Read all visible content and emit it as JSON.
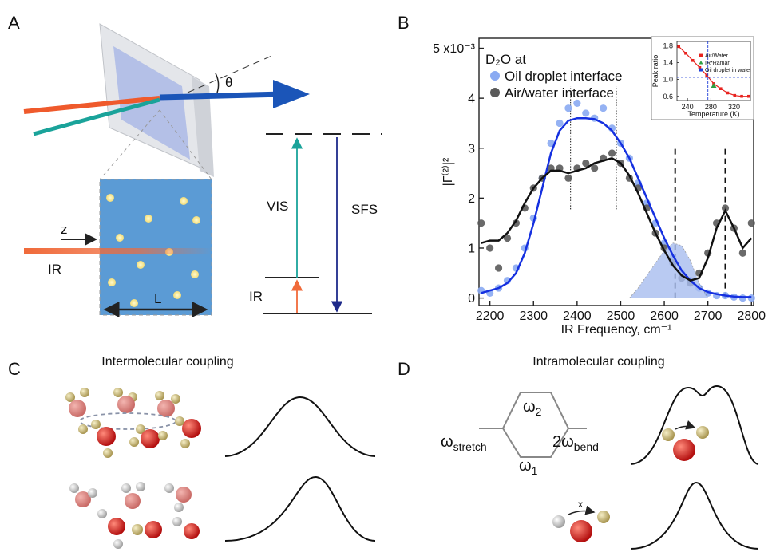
{
  "panel_labels": [
    "A",
    "B",
    "C",
    "D"
  ],
  "panel_a": {
    "angle": "θ",
    "vis": "VIS",
    "sfs": "SFS",
    "ir_level": "IR",
    "ir_beam": "IR",
    "z": "z",
    "length": "L"
  },
  "chart_data": [
    {
      "type": "scatter",
      "ylabel": "|Γ⁽²⁾|²",
      "xlabel": "IR Frequency, cm⁻¹",
      "legend_title": "D₂O at",
      "xlim": [
        2175,
        2805
      ],
      "ylim": [
        -0.15,
        5.2
      ],
      "xticks": [
        2200,
        2300,
        2400,
        2500,
        2600,
        2700,
        2800
      ],
      "yticks": [
        0,
        1,
        2,
        3,
        4,
        {
          "value": 5,
          "label": "5 x10⁻³"
        }
      ],
      "x": [
        2180,
        2200,
        2220,
        2240,
        2260,
        2280,
        2300,
        2320,
        2340,
        2360,
        2380,
        2400,
        2420,
        2440,
        2460,
        2480,
        2500,
        2520,
        2540,
        2560,
        2580,
        2600,
        2620,
        2640,
        2660,
        2680,
        2700,
        2720,
        2740,
        2760,
        2780,
        2800
      ],
      "series": [
        {
          "name": "Oil droplet interface",
          "color": "#8aaaf2",
          "style": "points",
          "values": [
            0.15,
            0.1,
            0.2,
            0.35,
            0.6,
            1.0,
            1.6,
            2.4,
            3.1,
            3.5,
            3.8,
            3.9,
            3.7,
            3.6,
            3.8,
            3.4,
            3.1,
            2.8,
            2.3,
            1.9,
            1.5,
            1.1,
            0.8,
            0.5,
            0.35,
            0.2,
            0.1,
            0.05,
            0.05,
            0.02,
            0.0,
            0.0
          ]
        },
        {
          "name": "Air/water interface",
          "color": "#5a5a5a",
          "style": "points",
          "values": [
            1.5,
            1.0,
            0.6,
            1.2,
            1.5,
            1.8,
            2.2,
            2.4,
            2.6,
            2.6,
            2.4,
            2.6,
            2.7,
            2.6,
            2.8,
            2.9,
            2.7,
            2.4,
            2.2,
            1.8,
            1.3,
            1.0,
            0.7,
            0.4,
            0.3,
            0.5,
            0.9,
            1.5,
            1.8,
            1.4,
            0.9,
            1.5
          ]
        },
        {
          "color": "#a8bdf0",
          "style": "area",
          "values": [
            null,
            null,
            null,
            null,
            null,
            null,
            null,
            null,
            null,
            null,
            null,
            null,
            null,
            null,
            null,
            null,
            null,
            0,
            0.2,
            0.45,
            0.7,
            0.95,
            1.1,
            1.05,
            0.75,
            0.3,
            0,
            null,
            null,
            null,
            null,
            null
          ]
        },
        {
          "color": "#1530e0",
          "style": "line",
          "values": [
            0.1,
            0.15,
            0.2,
            0.3,
            0.5,
            0.9,
            1.5,
            2.2,
            2.9,
            3.35,
            3.55,
            3.6,
            3.6,
            3.58,
            3.5,
            3.35,
            3.1,
            2.8,
            2.4,
            2.0,
            1.6,
            1.2,
            0.85,
            0.55,
            0.35,
            0.2,
            0.12,
            0.08,
            0.05,
            0.03,
            0.02,
            0.02
          ]
        },
        {
          "color": "#111111",
          "style": "line",
          "values": [
            1.1,
            1.15,
            1.15,
            1.3,
            1.55,
            1.9,
            2.2,
            2.4,
            2.55,
            2.55,
            2.5,
            2.55,
            2.6,
            2.7,
            2.75,
            2.8,
            2.7,
            2.45,
            2.1,
            1.7,
            1.3,
            0.95,
            0.65,
            0.45,
            0.35,
            0.4,
            0.8,
            1.4,
            1.75,
            1.4,
            1.0,
            1.2
          ]
        }
      ],
      "vlines": [
        {
          "x": 2385,
          "style": "dotted"
        },
        {
          "x": 2490,
          "style": "dotted"
        },
        {
          "x": 2625,
          "style": "dashed"
        },
        {
          "x": 2740,
          "style": "dashed"
        }
      ]
    },
    {
      "type": "scatter",
      "xlabel": "Temperature (K)",
      "ylabel": "Peak ratio",
      "xlim": [
        222,
        348
      ],
      "ylim": [
        0.5,
        1.9
      ],
      "xticks": [
        240,
        280,
        320
      ],
      "yticks": [
        0.6,
        {
          "value": 1,
          "label": "1.0"
        },
        1.4,
        1.8
      ],
      "series": [
        {
          "name": "Air/Water",
          "color": "#e8231f",
          "style": "line-points",
          "x": [
            225,
            237,
            249,
            261,
            273,
            285,
            297,
            309,
            321,
            333,
            345
          ],
          "values": [
            1.78,
            1.62,
            1.45,
            1.28,
            1.1,
            0.9,
            0.78,
            0.68,
            0.62,
            0.6,
            0.6
          ]
        },
        {
          "name": "IR*Raman",
          "color": "#2ea043",
          "style": "triangle",
          "x": [
            285
          ],
          "values": [
            0.85
          ]
        },
        {
          "name": "Oil droplet in water",
          "color": "#1f3fd8",
          "style": "crosshair",
          "x": [
            275
          ],
          "values": [
            1.05
          ]
        }
      ]
    }
  ],
  "panel_c": {
    "title": "Intermolecular coupling"
  },
  "panel_d": {
    "title": "Intramolecular coupling",
    "upper_level": {
      "symbol": "ω",
      "subscript": "2"
    },
    "lower_level": {
      "symbol": "ω",
      "subscript": "1"
    },
    "left_level": {
      "symbol": "ω",
      "subscript": "stretch"
    },
    "right_level": {
      "symbol": "2ω",
      "subscript": "bend"
    },
    "coupling_label": "x"
  }
}
